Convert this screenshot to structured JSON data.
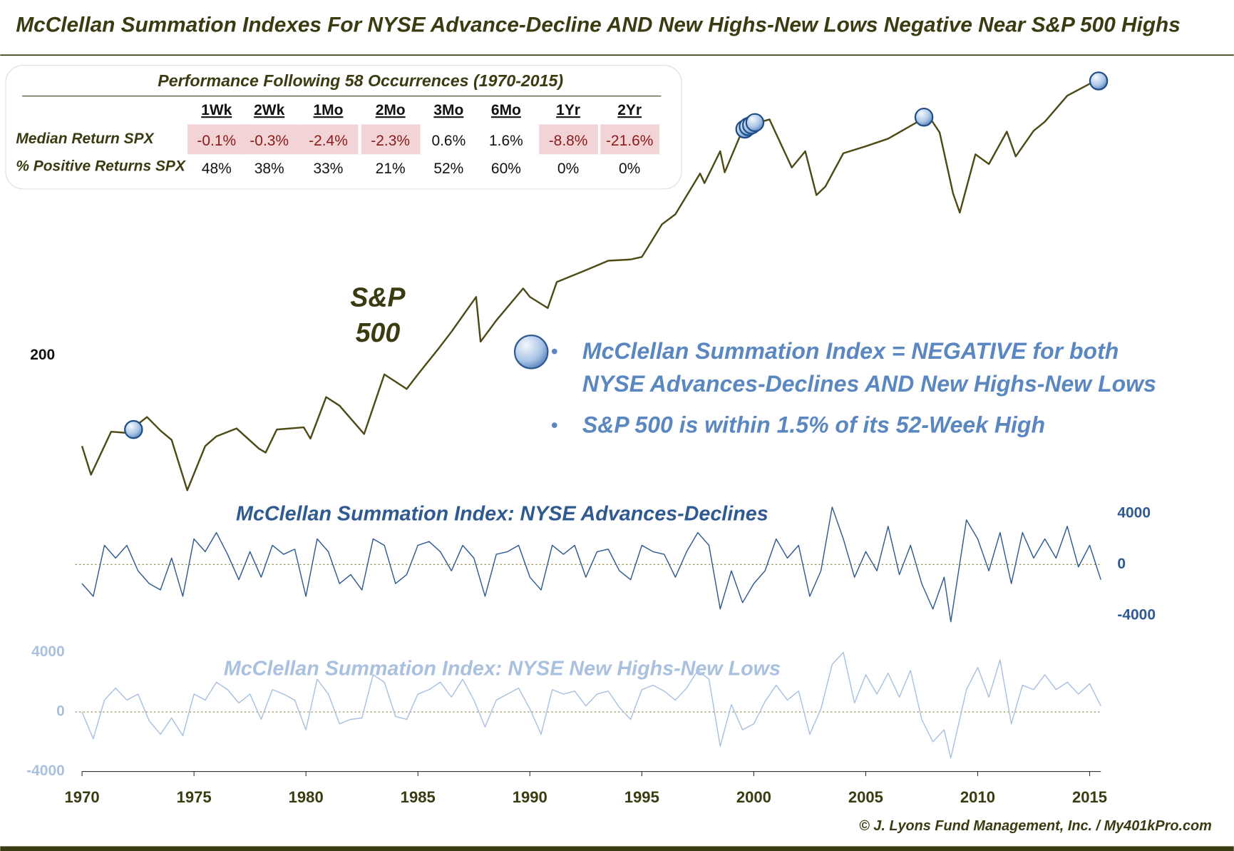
{
  "title": "McClellan Summation Indexes For NYSE Advance-Decline AND New Highs-New Lows Negative Near S&P 500 Highs",
  "table": {
    "title": "Performance Following 58 Occurrences (1970-2015)",
    "columns": [
      "1Wk",
      "2Wk",
      "1Mo",
      "2Mo",
      "3Mo",
      "6Mo",
      "1Yr",
      "2Yr"
    ],
    "rows": [
      {
        "label": "Median Return SPX",
        "cells": [
          "-0.1%",
          "-0.3%",
          "-2.4%",
          "-2.3%",
          "0.6%",
          "1.6%",
          "-8.8%",
          "-21.6%"
        ]
      },
      {
        "label": "% Positive Returns SPX",
        "cells": [
          "48%",
          "38%",
          "33%",
          "21%",
          "52%",
          "60%",
          "0%",
          "0%"
        ]
      }
    ]
  },
  "bullets": [
    [
      "McClellan Summation Index = NEGATIVE for both",
      "NYSE Advances-Declines AND New Highs-New Lows"
    ],
    [
      "S&P 500 is within 1.5% of its 52-Week High"
    ]
  ],
  "footer": "© J. Lyons Fund Management, Inc. / My401kPro.com",
  "chart_data": [
    {
      "type": "line",
      "label": [
        "S&P",
        "500"
      ],
      "log_scale": true,
      "color": "#4d4a16",
      "xlim": [
        1969.7,
        2015.5
      ],
      "ylim": [
        60,
        2400
      ],
      "yticks": [
        200
      ],
      "x": [
        1970.0,
        1970.4,
        1971.3,
        1972.0,
        1972.9,
        1973.5,
        1974.0,
        1974.7,
        1975.5,
        1976.0,
        1976.9,
        1977.9,
        1978.2,
        1978.7,
        1979.9,
        1980.2,
        1980.9,
        1981.5,
        1982.6,
        1983.5,
        1984.5,
        1985.0,
        1985.9,
        1986.5,
        1987.6,
        1987.8,
        1988.5,
        1989.7,
        1990.0,
        1990.8,
        1991.2,
        1992.5,
        1993.5,
        1994.5,
        1995.0,
        1995.9,
        1996.5,
        1997.6,
        1997.8,
        1998.5,
        1998.7,
        1999.5,
        2000.2,
        2000.7,
        2001.7,
        2002.3,
        2002.8,
        2003.2,
        2004.0,
        2005.0,
        2006.0,
        2007.8,
        2008.3,
        2008.9,
        2009.2,
        2009.9,
        2010.5,
        2011.3,
        2011.7,
        2012.5,
        2013.0,
        2014.0,
        2015.0,
        2015.4
      ],
      "values": [
        92,
        72,
        104,
        103,
        118,
        105,
        97,
        63,
        92,
        100,
        107,
        90,
        87,
        106,
        108,
        98,
        140,
        130,
        102,
        170,
        150,
        170,
        211,
        245,
        330,
        225,
        270,
        355,
        330,
        300,
        375,
        415,
        450,
        455,
        465,
        615,
        670,
        950,
        875,
        1150,
        960,
        1380,
        1470,
        1510,
        1000,
        1150,
        790,
        850,
        1130,
        1200,
        1280,
        1560,
        1350,
        800,
        680,
        1120,
        1030,
        1360,
        1100,
        1370,
        1480,
        1850,
        2050,
        2110
      ],
      "markers": {
        "color": "#1f4e86",
        "x": [
          1972.3,
          1999.6,
          1999.75,
          1999.9,
          2000.05,
          2007.6,
          2015.4
        ],
        "values": [
          106,
          1390,
          1420,
          1440,
          1470,
          1540,
          2100
        ]
      }
    },
    {
      "type": "line",
      "title": "McClellan Summation Index: NYSE Advances-Declines",
      "color": "#2f5a8f",
      "tick_side": "right",
      "zero_line": true,
      "xlim": [
        1969.7,
        2015.5
      ],
      "ylim": [
        -5500,
        5500
      ],
      "yticks": [
        -4000,
        0,
        4000
      ],
      "x": [
        1970.0,
        1970.5,
        1971.0,
        1971.5,
        1972.0,
        1972.5,
        1973.0,
        1973.5,
        1974.0,
        1974.5,
        1975.0,
        1975.5,
        1976.0,
        1976.5,
        1977.0,
        1977.5,
        1978.0,
        1978.5,
        1979.0,
        1979.5,
        1980.0,
        1980.5,
        1981.0,
        1981.5,
        1982.0,
        1982.5,
        1983.0,
        1983.5,
        1984.0,
        1984.5,
        1985.0,
        1985.5,
        1986.0,
        1986.5,
        1987.0,
        1987.5,
        1988.0,
        1988.5,
        1989.0,
        1989.5,
        1990.0,
        1990.5,
        1991.0,
        1991.5,
        1992.0,
        1992.5,
        1993.0,
        1993.5,
        1994.0,
        1994.5,
        1995.0,
        1995.5,
        1996.0,
        1996.5,
        1997.0,
        1997.5,
        1998.0,
        1998.5,
        1999.0,
        1999.5,
        2000.0,
        2000.5,
        2001.0,
        2001.5,
        2002.0,
        2002.5,
        2003.0,
        2003.5,
        2004.0,
        2004.5,
        2005.0,
        2005.5,
        2006.0,
        2006.5,
        2007.0,
        2007.5,
        2008.0,
        2008.5,
        2008.8,
        2009.5,
        2010.0,
        2010.5,
        2011.0,
        2011.5,
        2012.0,
        2012.5,
        2013.0,
        2013.5,
        2014.0,
        2014.5,
        2015.0,
        2015.5
      ],
      "values": [
        -1500,
        -2500,
        1500,
        500,
        1500,
        -500,
        -1500,
        -2000,
        500,
        -2500,
        2000,
        1000,
        2500,
        800,
        -1200,
        1000,
        -1000,
        1500,
        800,
        1200,
        -2500,
        2000,
        1000,
        -1500,
        -800,
        -2000,
        2000,
        1500,
        -1500,
        -800,
        1500,
        1800,
        1000,
        -500,
        1500,
        500,
        -2500,
        800,
        1000,
        1500,
        -1000,
        -2000,
        1500,
        800,
        1500,
        -1000,
        1000,
        1200,
        -500,
        -1200,
        1500,
        1000,
        800,
        -1000,
        1000,
        2500,
        1500,
        -3500,
        -500,
        -3000,
        -1500,
        -500,
        2000,
        500,
        1500,
        -2500,
        -500,
        4500,
        2000,
        -1000,
        1000,
        -500,
        3000,
        -800,
        1500,
        -1500,
        -3500,
        -1000,
        -4500,
        3500,
        2000,
        -500,
        2500,
        -1500,
        2500,
        500,
        2000,
        500,
        3000,
        -200,
        1500,
        -1200
      ]
    },
    {
      "type": "line",
      "title": "McClellan Summation Index: NYSE New Highs-New Lows",
      "color": "#a9c1df",
      "tick_side": "left",
      "zero_line": true,
      "xlim": [
        1969.7,
        2015.5
      ],
      "ylim": [
        -4000,
        4200
      ],
      "yticks": [
        -4000,
        0,
        4000
      ],
      "xticks": [
        1970,
        1975,
        1980,
        1985,
        1990,
        1995,
        2000,
        2005,
        2010,
        2015
      ],
      "x": [
        1970.0,
        1970.5,
        1971.0,
        1971.5,
        1972.0,
        1972.5,
        1973.0,
        1973.5,
        1974.0,
        1974.5,
        1975.0,
        1975.5,
        1976.0,
        1976.5,
        1977.0,
        1977.5,
        1978.0,
        1978.5,
        1979.0,
        1979.5,
        1980.0,
        1980.5,
        1981.0,
        1981.5,
        1982.0,
        1982.5,
        1983.0,
        1983.5,
        1984.0,
        1984.5,
        1985.0,
        1985.5,
        1986.0,
        1986.5,
        1987.0,
        1987.5,
        1988.0,
        1988.5,
        1989.0,
        1989.5,
        1990.0,
        1990.5,
        1991.0,
        1991.5,
        1992.0,
        1992.5,
        1993.0,
        1993.5,
        1994.0,
        1994.5,
        1995.0,
        1995.5,
        1996.0,
        1996.5,
        1997.0,
        1997.5,
        1998.0,
        1998.5,
        1999.0,
        1999.5,
        2000.0,
        2000.5,
        2001.0,
        2001.5,
        2002.0,
        2002.5,
        2003.0,
        2003.5,
        2004.0,
        2004.5,
        2005.0,
        2005.5,
        2006.0,
        2006.5,
        2007.0,
        2007.5,
        2008.0,
        2008.5,
        2008.8,
        2009.5,
        2010.0,
        2010.5,
        2011.0,
        2011.5,
        2012.0,
        2012.5,
        2013.0,
        2013.5,
        2014.0,
        2014.5,
        2015.0,
        2015.5
      ],
      "values": [
        0,
        -1800,
        800,
        1600,
        800,
        1200,
        -600,
        -1500,
        -400,
        -1600,
        1200,
        800,
        2000,
        1500,
        600,
        1200,
        -500,
        1500,
        1200,
        800,
        -1200,
        2200,
        1200,
        -800,
        -500,
        -400,
        2500,
        2000,
        -300,
        -500,
        1200,
        1500,
        2000,
        1000,
        2200,
        800,
        -1000,
        800,
        1200,
        1600,
        200,
        -1500,
        1500,
        1200,
        1400,
        400,
        1200,
        1400,
        300,
        -500,
        1500,
        1800,
        1400,
        800,
        1600,
        2800,
        2200,
        -2300,
        500,
        -1200,
        -800,
        700,
        1800,
        800,
        1400,
        -1500,
        200,
        3200,
        4000,
        600,
        2500,
        1200,
        2600,
        1000,
        2800,
        -500,
        -2000,
        -1200,
        -3100,
        1500,
        3000,
        1000,
        3500,
        -800,
        1800,
        1500,
        2500,
        1500,
        2000,
        1200,
        1900,
        400
      ]
    }
  ]
}
